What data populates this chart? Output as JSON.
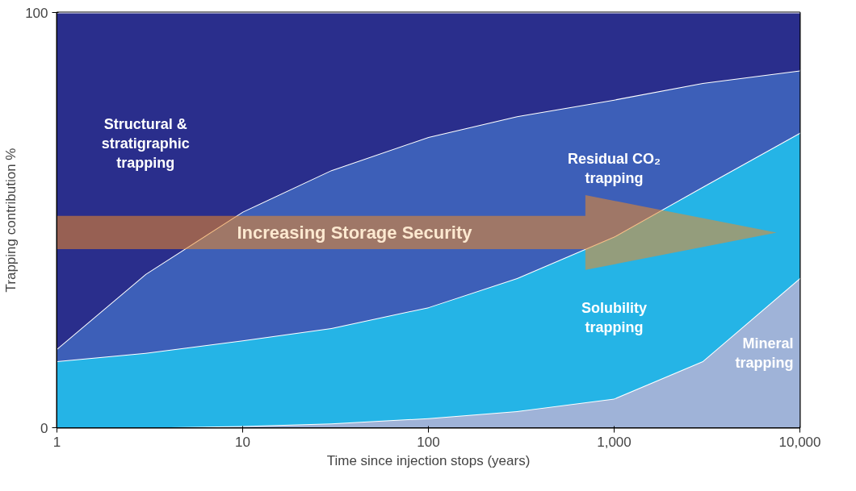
{
  "chart_data": {
    "type": "area",
    "stacked": true,
    "xlabel": "Time since injection stops (years)",
    "ylabel": "Trapping contribution %",
    "x": [
      1,
      3,
      10,
      30,
      100,
      300,
      1000,
      3000,
      10000
    ],
    "log": "x",
    "xlim": [
      1,
      10000
    ],
    "xticks": [
      1,
      10,
      100,
      {
        "value": 1000,
        "label": "1,000"
      },
      {
        "value": 10000,
        "label": "10,000"
      }
    ],
    "ylim": [
      0,
      100
    ],
    "yticks": [
      0,
      100
    ],
    "grid": false,
    "series": [
      {
        "name": "Mineral trapping",
        "color": "#9fb3d8",
        "values": [
          0,
          0,
          0.4,
          1,
          2.3,
          4,
          7,
          16,
          36
        ]
      },
      {
        "name": "Solubility trapping",
        "color": "#25b4e6",
        "values": [
          16,
          18,
          20.6,
          23,
          26.7,
          32,
          39,
          42,
          35
        ]
      },
      {
        "name": "Residual CO₂ trapping",
        "color": "#3d5fb8",
        "values": [
          3,
          19,
          31,
          38,
          41,
          39,
          33,
          25,
          15
        ]
      },
      {
        "name": "Structural & stratigraphic trapping",
        "color": "#2a2e8c",
        "values": [
          81,
          63,
          48,
          38,
          30,
          25,
          21,
          17,
          14
        ]
      }
    ],
    "annotations": [
      "Increasing Storage Security"
    ]
  }
}
